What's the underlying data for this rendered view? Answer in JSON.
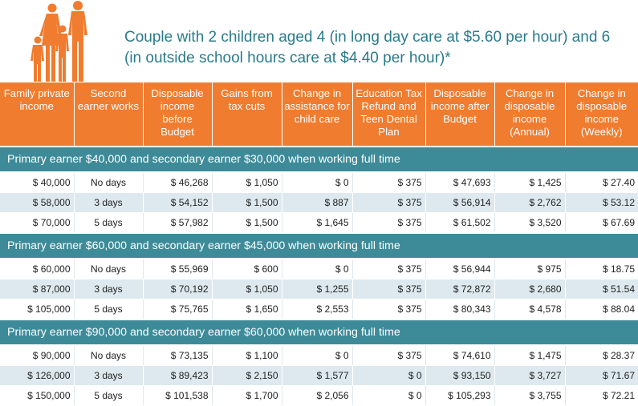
{
  "title": {
    "line1": "Couple with 2 children aged 4 (in long day care at $5.60 per hour) and 6",
    "line2": "(in outside school hours care at $4.40 per hour)*"
  },
  "colors": {
    "header": "#f07c2f",
    "section": "#3d8b99",
    "shade": "#dde9ee",
    "title": "#2a7b8a"
  },
  "icon": "family-silhouette-icon",
  "headers": [
    "Family private income",
    "Second earner works",
    "Disposable income before Budget",
    "Gains from tax cuts",
    "Change in assistance for child care",
    "Education Tax Refund and Teen Dental Plan",
    "Disposable income after Budget",
    "Change in disposable income (Annual)",
    "Change in disposable income (Weekly)"
  ],
  "sections": [
    {
      "label": "Primary earner $40,000 and secondary earner $30,000 when working full time",
      "rows": [
        [
          "$ 40,000",
          "No days",
          "$ 46,268",
          "$ 1,050",
          "$ 0",
          "$ 375",
          "$ 47,693",
          "$ 1,425",
          "$ 27.40"
        ],
        [
          "$ 58,000",
          "3 days",
          "$ 54,152",
          "$ 1,500",
          "$ 887",
          "$ 375",
          "$ 56,914",
          "$ 2,762",
          "$ 53.12"
        ],
        [
          "$ 70,000",
          "5 days",
          "$ 57,982",
          "$ 1,500",
          "$ 1,645",
          "$ 375",
          "$ 61,502",
          "$ 3,520",
          "$ 67.69"
        ]
      ]
    },
    {
      "label": "Primary earner $60,000 and secondary earner $45,000 when working full time",
      "rows": [
        [
          "$ 60,000",
          "No days",
          "$ 55,969",
          "$ 600",
          "$ 0",
          "$ 375",
          "$ 56,944",
          "$ 975",
          "$ 18.75"
        ],
        [
          "$ 87,000",
          "3 days",
          "$ 70,192",
          "$ 1,050",
          "$ 1,255",
          "$ 375",
          "$ 72,872",
          "$ 2,680",
          "$ 51.54"
        ],
        [
          "$ 105,000",
          "5 days",
          "$ 75,765",
          "$ 1,650",
          "$ 2,553",
          "$ 375",
          "$ 80,343",
          "$ 4,578",
          "$ 88.04"
        ]
      ]
    },
    {
      "label": "Primary earner $90,000 and secondary earner $60,000 when working full time",
      "rows": [
        [
          "$ 90,000",
          "No days",
          "$ 73,135",
          "$ 1,100",
          "$ 0",
          "$ 375",
          "$ 74,610",
          "$ 1,475",
          "$ 28.37"
        ],
        [
          "$ 126,000",
          "3 days",
          "$ 89,423",
          "$ 2,150",
          "$ 1,577",
          "$ 0",
          "$ 93,150",
          "$ 3,727",
          "$ 71.67"
        ],
        [
          "$ 150,000",
          "5 days",
          "$ 101,538",
          "$ 1,700",
          "$ 2,056",
          "$ 0",
          "$ 105,293",
          "$ 3,755",
          "$ 72.21"
        ]
      ]
    }
  ]
}
